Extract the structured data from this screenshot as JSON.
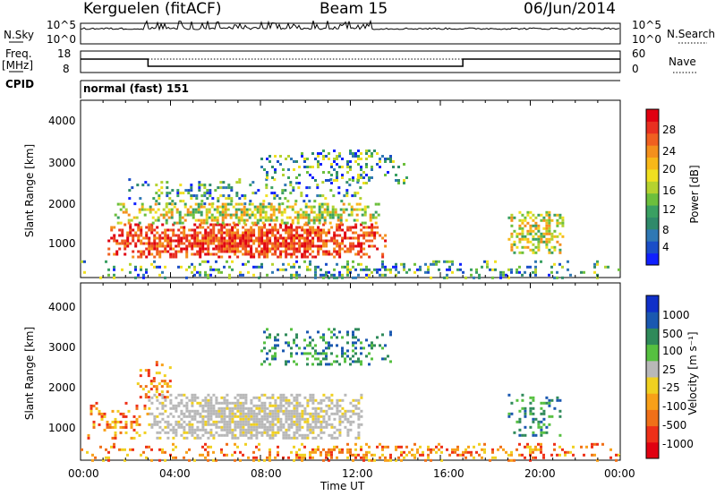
{
  "header": {
    "radar": "Kerguelen (fitACF)",
    "beam": "Beam 15",
    "date": "06/Jun/2014"
  },
  "summary": {
    "nsky_label": "N.Sky",
    "nsky_ticks": [
      "10^5",
      "10^0"
    ],
    "nsearch_label": "N.Search",
    "nsearch_ticks": [
      "10^5",
      "10^0"
    ],
    "freq_label": "Freq.",
    "freq_unit": "[MHz]",
    "freq_ticks": [
      "18",
      "8"
    ],
    "nave_label": "Nave",
    "nave_ticks": [
      "60",
      "0"
    ],
    "cpid_label": "CPID",
    "cpid_value": "normal (fast) 151"
  },
  "chart_data": [
    {
      "type": "heatmap",
      "name": "power",
      "ylabel": "Slant Range [km]",
      "xlabel": "Time UT",
      "x_ticks": [
        "00:00",
        "04:00",
        "08:00",
        "12:00",
        "16:00",
        "20:00",
        "00:00"
      ],
      "xlim_hours": [
        0,
        24
      ],
      "y_ticks": [
        1000,
        2000,
        3000,
        4000
      ],
      "ylim_km": [
        180,
        4500
      ],
      "colorbar": {
        "label": "Power [dB]",
        "ticks": [
          "4",
          "8",
          "12",
          "16",
          "20",
          "24",
          "28"
        ],
        "colors": [
          "#1020ff",
          "#1a4ec8",
          "#2f78b4",
          "#2f8a6a",
          "#3aa062",
          "#6cbf3c",
          "#b5d22f",
          "#f0e020",
          "#f8b818",
          "#f4901c",
          "#f06020",
          "#e83020",
          "#e00010"
        ]
      },
      "regions": [
        {
          "t0": 1.2,
          "t1": 13.5,
          "r0": 700,
          "r1": 1500,
          "level": "high"
        },
        {
          "t0": 1.5,
          "t1": 13.3,
          "r0": 1500,
          "r1": 2000,
          "level": "mid"
        },
        {
          "t0": 2.0,
          "t1": 12.5,
          "r0": 2000,
          "r1": 2600,
          "level": "low"
        },
        {
          "t0": 8.0,
          "t1": 14.5,
          "r0": 2500,
          "r1": 3300,
          "level": "low"
        },
        {
          "t0": 19.0,
          "t1": 21.5,
          "r0": 800,
          "r1": 1800,
          "level": "mid"
        },
        {
          "t0": 0.0,
          "t1": 24.0,
          "r0": 200,
          "r1": 600,
          "level": "low"
        }
      ]
    },
    {
      "type": "heatmap",
      "name": "velocity",
      "ylabel": "Slant Range [km]",
      "xlabel": "Time UT",
      "x_ticks": [
        "00:00",
        "04:00",
        "08:00",
        "12:00",
        "16:00",
        "20:00",
        "00:00"
      ],
      "xlim_hours": [
        0,
        24
      ],
      "y_ticks": [
        1000,
        2000,
        3000,
        4000
      ],
      "ylim_km": [
        180,
        4500
      ],
      "colorbar": {
        "label": "Velocity [m s⁻¹]",
        "ticks": [
          "1000",
          "500",
          "100",
          "25",
          "-25",
          "-100",
          "-500",
          "-1000"
        ],
        "colors": [
          "#1030c8",
          "#1a58b0",
          "#2f8a5a",
          "#56c040",
          "#b8b8b8",
          "#f0d020",
          "#f8a018",
          "#f07018",
          "#ee3018",
          "#e00010"
        ]
      },
      "regions": [
        {
          "t0": 3.0,
          "t1": 12.5,
          "r0": 700,
          "r1": 1800,
          "level": "ground"
        },
        {
          "t0": 0.3,
          "t1": 3.0,
          "r0": 700,
          "r1": 1600,
          "level": "neg"
        },
        {
          "t0": 2.5,
          "t1": 4.0,
          "r0": 1700,
          "r1": 2600,
          "level": "neg"
        },
        {
          "t0": 8.0,
          "t1": 14.0,
          "r0": 2500,
          "r1": 3400,
          "level": "pos"
        },
        {
          "t0": 19.0,
          "t1": 21.5,
          "r0": 800,
          "r1": 1800,
          "level": "pos"
        },
        {
          "t0": 0.0,
          "t1": 24.0,
          "r0": 200,
          "r1": 600,
          "level": "neg"
        }
      ]
    }
  ],
  "axis": {
    "time_label": "Time UT"
  }
}
